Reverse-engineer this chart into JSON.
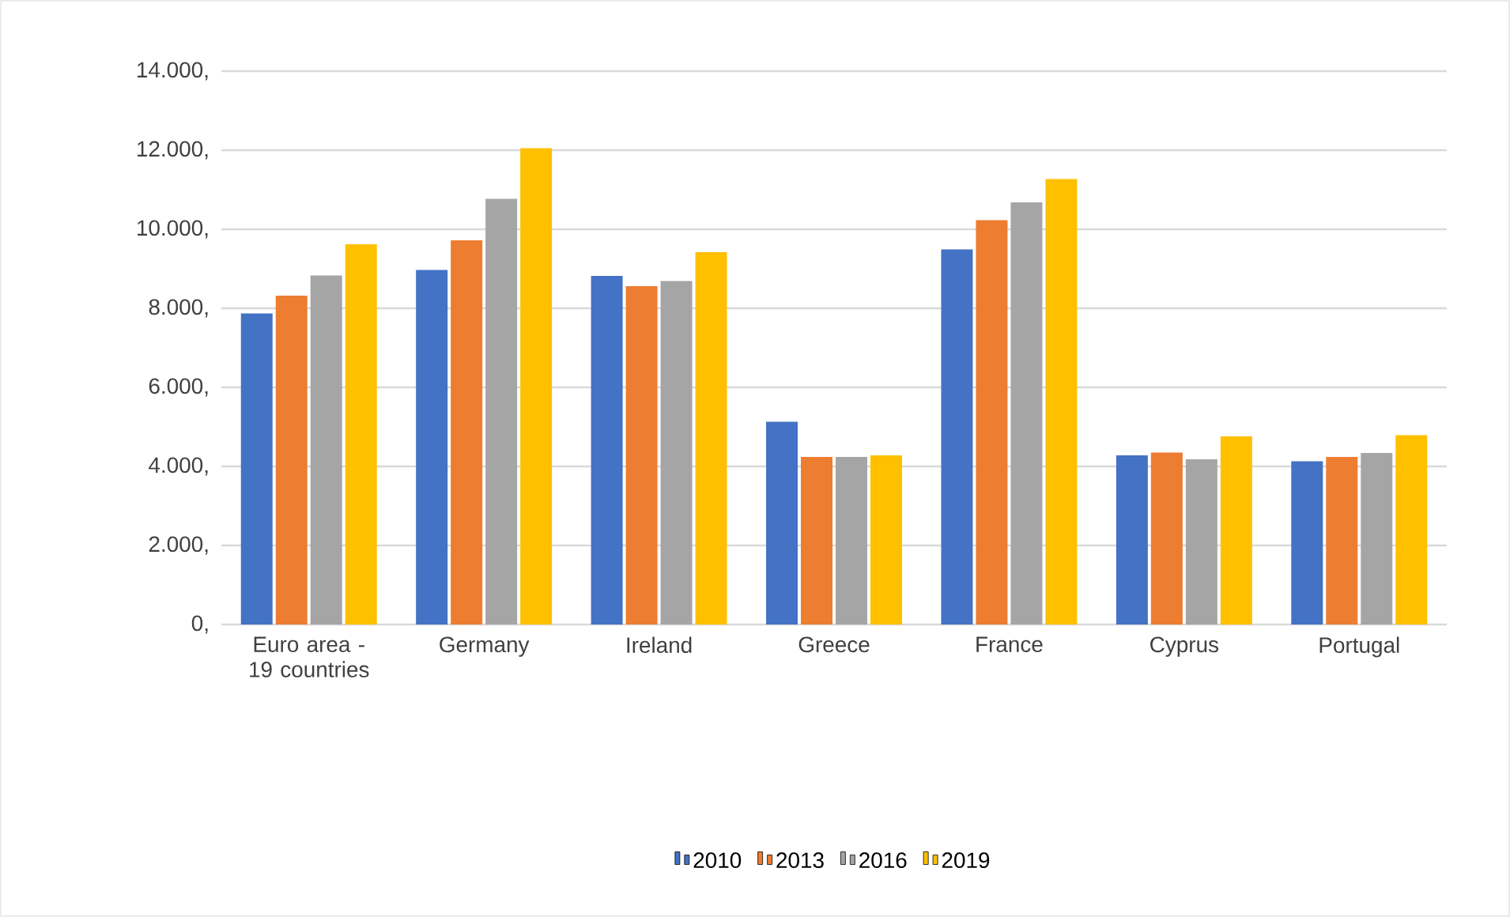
{
  "chart_data": {
    "type": "bar",
    "categories": [
      "Euro area - 19 countries",
      "Germany",
      "Ireland",
      "Greece",
      "France",
      "Cyprus",
      "Portugal"
    ],
    "series": [
      {
        "name": "2010",
        "color": "#4472c4",
        "values": [
          7870,
          8970,
          8820,
          5130,
          9490,
          4280,
          4130
        ]
      },
      {
        "name": "2013",
        "color": "#ed7d31",
        "values": [
          8320,
          9720,
          8560,
          4240,
          10230,
          4350,
          4240
        ]
      },
      {
        "name": "2016",
        "color": "#a5a5a5",
        "values": [
          8830,
          10770,
          8690,
          4240,
          10680,
          4180,
          4340
        ]
      },
      {
        "name": "2019",
        "color": "#ffc000",
        "values": [
          9620,
          12050,
          9420,
          4280,
          11270,
          4760,
          4790
        ]
      }
    ],
    "ylim": [
      0,
      14000
    ],
    "yticks": [
      {
        "value": 0,
        "label": "0,"
      },
      {
        "value": 2000,
        "label": "2.000,"
      },
      {
        "value": 4000,
        "label": "4.000,"
      },
      {
        "value": 6000,
        "label": "6.000,"
      },
      {
        "value": 8000,
        "label": "8.000,"
      },
      {
        "value": 10000,
        "label": "10.000,"
      },
      {
        "value": 12000,
        "label": "12.000,"
      },
      {
        "value": 14000,
        "label": "14.000,"
      }
    ],
    "grid": "y",
    "legend": "bottom"
  }
}
